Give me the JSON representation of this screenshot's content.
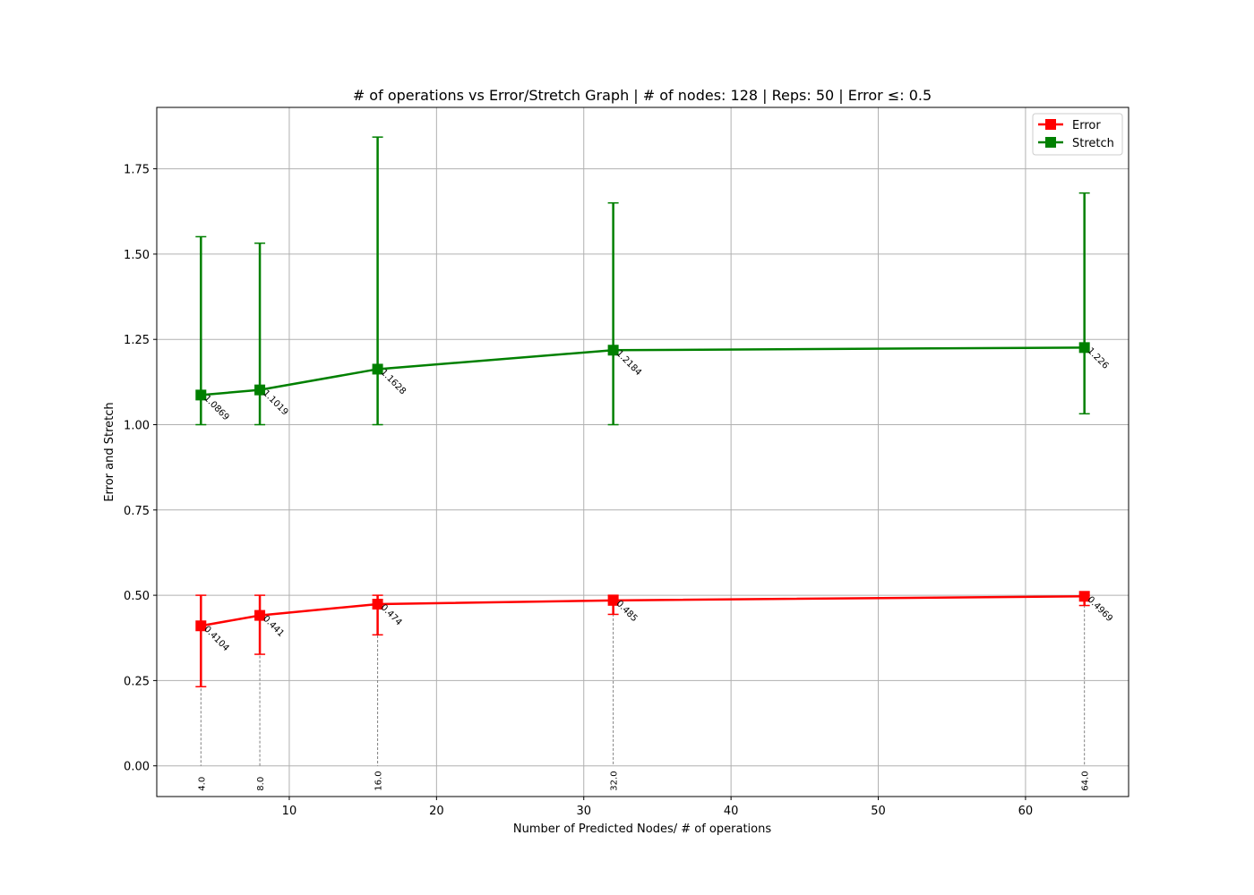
{
  "chart_data": {
    "type": "line",
    "title": "# of operations vs Error/Stretch Graph | # of nodes: 128 | Reps: 50 | Error ≤: 0.5",
    "xlabel": "Number of Predicted Nodes/ # of operations",
    "ylabel": "Error and Stretch",
    "xlim": [
      1.0,
      67.0
    ],
    "ylim": [
      -0.09,
      1.93
    ],
    "xticks": [
      10,
      20,
      30,
      40,
      50,
      60
    ],
    "yticks": [
      0.0,
      0.25,
      0.5,
      0.75,
      1.0,
      1.25,
      1.5,
      1.75
    ],
    "xtick_labels": [
      "10",
      "20",
      "30",
      "40",
      "50",
      "60"
    ],
    "ytick_labels": [
      "0.00",
      "0.25",
      "0.50",
      "0.75",
      "1.00",
      "1.25",
      "1.50",
      "1.75"
    ],
    "grid": true,
    "legend_position": "top-right",
    "x": [
      4,
      8,
      16,
      32,
      64
    ],
    "x_annotations": [
      "4.0",
      "8.0",
      "16.0",
      "32.0",
      "64.0"
    ],
    "series": [
      {
        "name": "Error",
        "color": "#ff0000",
        "marker": "square",
        "values": [
          0.4104,
          0.441,
          0.474,
          0.485,
          0.4969
        ],
        "value_labels": [
          "0.4104",
          "0.441",
          "0.474",
          "0.485",
          "0.4969"
        ],
        "err_low": [
          0.232,
          0.327,
          0.384,
          0.444,
          0.47
        ],
        "err_high": [
          0.5,
          0.5,
          0.5,
          0.5,
          0.5
        ]
      },
      {
        "name": "Stretch",
        "color": "#008000",
        "marker": "square",
        "values": [
          1.0869,
          1.1019,
          1.1628,
          1.2184,
          1.226
        ],
        "value_labels": [
          "1.0869",
          "1.1019",
          "1.1628",
          "1.2184",
          "1.226"
        ],
        "err_low": [
          1.0,
          1.0,
          1.0,
          1.0,
          1.032
        ],
        "err_high": [
          1.551,
          1.532,
          1.843,
          1.65,
          1.679
        ]
      }
    ]
  }
}
